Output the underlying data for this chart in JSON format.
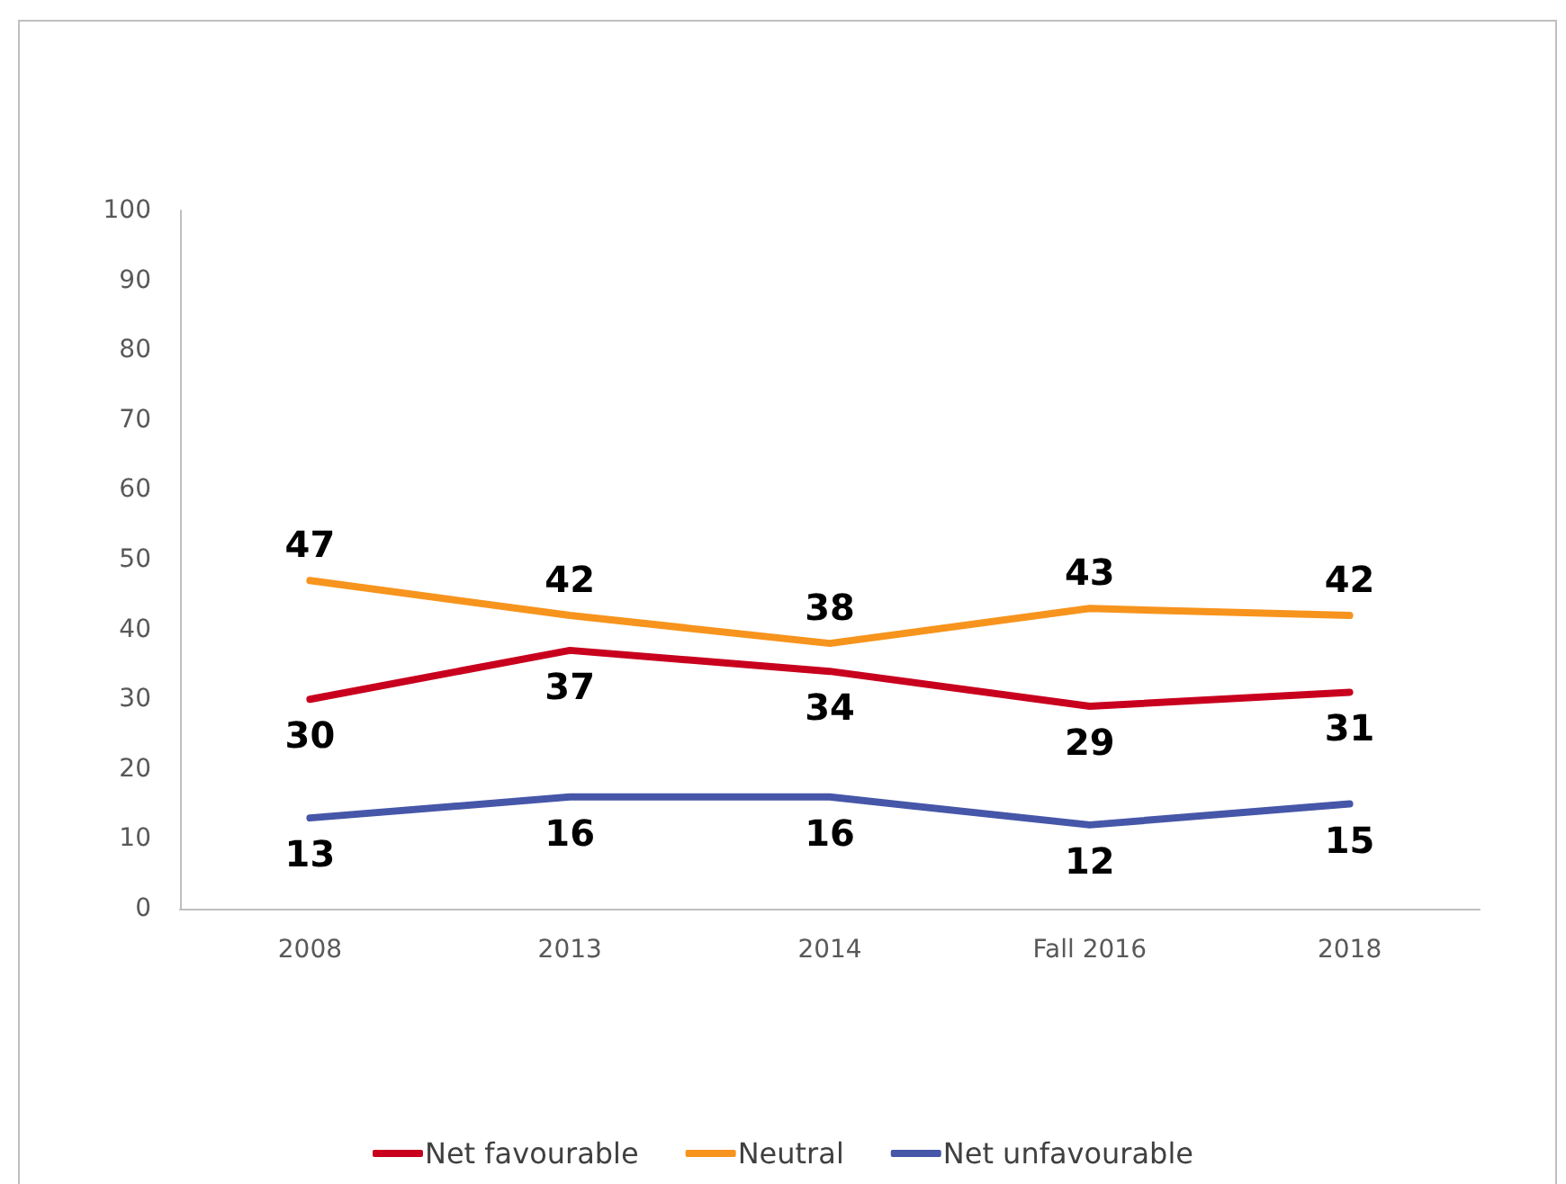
{
  "chart_data": {
    "type": "line",
    "categories": [
      "2008",
      "2013",
      "2014",
      "Fall 2016",
      "2018"
    ],
    "series": [
      {
        "name": "Net favourable",
        "color": "#c8001e",
        "values": [
          30,
          37,
          34,
          29,
          31
        ]
      },
      {
        "name": "Neutral",
        "color": "#f7941d",
        "values": [
          47,
          42,
          38,
          43,
          42
        ]
      },
      {
        "name": "Net unfavourable",
        "color": "#4656a8",
        "values": [
          13,
          16,
          16,
          12,
          15
        ]
      }
    ],
    "ylim": [
      0,
      100
    ],
    "yticks": [
      0,
      10,
      20,
      30,
      40,
      50,
      60,
      70,
      80,
      90,
      100
    ],
    "grid": false,
    "legend": "bottom",
    "data_labels": true,
    "marker": "none",
    "line_style": "solid"
  }
}
